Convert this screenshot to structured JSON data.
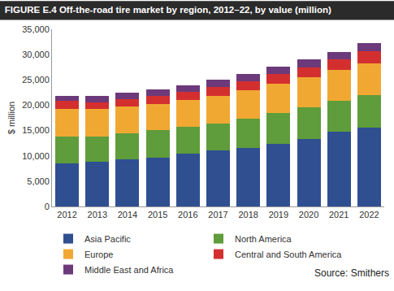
{
  "chart_data": {
    "type": "bar",
    "stacked": true,
    "title": "FIGURE E.4 Off-the-road tire market by region, 2012–22, by value (million)",
    "y_label": "$ million",
    "annotations": [
      "Source: Smithers"
    ],
    "categories": [
      "2012",
      "2013",
      "2014",
      "2015",
      "2016",
      "2017",
      "2018",
      "2019",
      "2020",
      "2021",
      "2022"
    ],
    "series": [
      {
        "name": "Asia Pacific",
        "color": "#2f4f91",
        "values": [
          8500,
          8900,
          9300,
          9700,
          10400,
          11000,
          11600,
          12400,
          13400,
          14700,
          15500
        ]
      },
      {
        "name": "North America",
        "color": "#5f9c3b",
        "values": [
          5300,
          4900,
          5200,
          5400,
          5300,
          5300,
          5700,
          6000,
          6200,
          6100,
          6500
        ]
      },
      {
        "name": "Europe",
        "color": "#f0a832",
        "values": [
          5400,
          5400,
          5200,
          5100,
          5300,
          5600,
          5600,
          5900,
          6000,
          6200,
          6300
        ]
      },
      {
        "name": "Central and South America",
        "color": "#d42f2f",
        "values": [
          1700,
          1400,
          1500,
          1700,
          1600,
          1700,
          1800,
          1800,
          1800,
          2000,
          2300
        ]
      },
      {
        "name": "Middle East and Africa",
        "color": "#6c3a7a",
        "values": [
          1000,
          1200,
          1300,
          1200,
          1300,
          1400,
          1500,
          1500,
          1700,
          1500,
          1600
        ]
      }
    ],
    "ylim": [
      0,
      35000
    ],
    "yticks": [
      0,
      {
        "value": 5000,
        "label": "5,000"
      },
      {
        "value": 10000,
        "label": "10,000"
      },
      {
        "value": 15000,
        "label": "15,000"
      },
      {
        "value": 20000,
        "label": "20,000"
      },
      {
        "value": 25000,
        "label": "25,000"
      },
      {
        "value": 30000,
        "label": "30,000"
      },
      {
        "value": 35000,
        "label": "35,000"
      }
    ],
    "grid": false,
    "legend": "bottom"
  }
}
